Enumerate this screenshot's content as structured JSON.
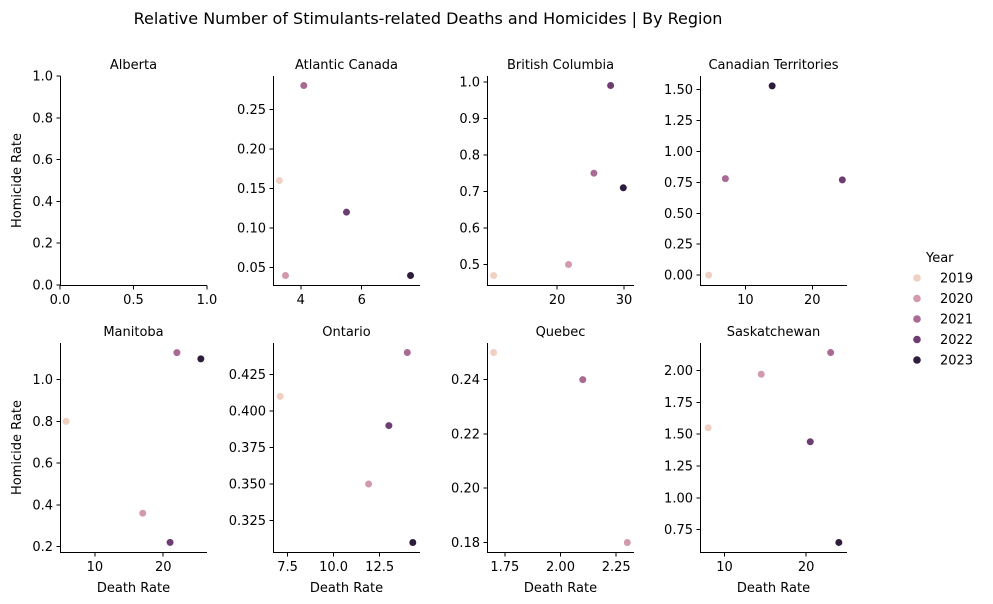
{
  "chart_data": {
    "type": "scatter",
    "title": "Relative Number of Stimulants-related Deaths and Homicides | By Region",
    "xlabel": "Death Rate",
    "ylabel": "Homicide Rate",
    "legend": {
      "title": "Year",
      "placement": "right",
      "entries": [
        {
          "label": "2019",
          "color": "#efd0c3"
        },
        {
          "label": "2020",
          "color": "#d29aac"
        },
        {
          "label": "2021",
          "color": "#a96a94"
        },
        {
          "label": "2022",
          "color": "#6d3d72"
        },
        {
          "label": "2023",
          "color": "#2d1c3c"
        }
      ]
    },
    "facets": [
      {
        "name": "Alberta",
        "xlim": [
          0,
          1
        ],
        "ylim": [
          0,
          1
        ],
        "xticks": [
          0,
          0.5,
          1
        ],
        "xtick_labels": [
          "0.0",
          "0.5",
          "1.0"
        ],
        "yticks": [
          0,
          0.2,
          0.4,
          0.6,
          0.8,
          1.0
        ],
        "ytick_labels": [
          "0.0",
          "0.2",
          "0.4",
          "0.6",
          "0.8",
          "1.0"
        ],
        "points": []
      },
      {
        "name": "Atlantic Canada",
        "xlim": [
          3.09,
          7.91
        ],
        "ylim": [
          0.028,
          0.292
        ],
        "xticks": [
          4,
          6
        ],
        "xtick_labels": [
          "4",
          "6"
        ],
        "yticks": [
          0.05,
          0.1,
          0.15,
          0.2,
          0.25
        ],
        "ytick_labels": [
          "0.05",
          "0.10",
          "0.15",
          "0.20",
          "0.25"
        ],
        "points": [
          {
            "year": "2019",
            "x": 3.3,
            "y": 0.16
          },
          {
            "year": "2020",
            "x": 3.5,
            "y": 0.04
          },
          {
            "year": "2021",
            "x": 4.1,
            "y": 0.28
          },
          {
            "year": "2022",
            "x": 5.5,
            "y": 0.12
          },
          {
            "year": "2023",
            "x": 7.6,
            "y": 0.04
          }
        ]
      },
      {
        "name": "British Columbia",
        "xlim": [
          9.5,
          31.5
        ],
        "ylim": [
          0.444,
          1.016
        ],
        "xticks": [
          20,
          30
        ],
        "xtick_labels": [
          "20",
          "30"
        ],
        "yticks": [
          0.5,
          0.6,
          0.7,
          0.8,
          0.9,
          1.0
        ],
        "ytick_labels": [
          "0.5",
          "0.6",
          "0.7",
          "0.8",
          "0.9",
          "1.0"
        ],
        "points": [
          {
            "year": "2019",
            "x": 10.5,
            "y": 0.47
          },
          {
            "year": "2020",
            "x": 21.7,
            "y": 0.5
          },
          {
            "year": "2021",
            "x": 25.5,
            "y": 0.75
          },
          {
            "year": "2022",
            "x": 28.0,
            "y": 0.99
          },
          {
            "year": "2023",
            "x": 29.9,
            "y": 0.71
          }
        ]
      },
      {
        "name": "Canadian Territories",
        "xlim": [
          3.2,
          25.2
        ],
        "ylim": [
          -0.08,
          1.61
        ],
        "xticks": [
          10,
          20
        ],
        "xtick_labels": [
          "10",
          "20"
        ],
        "yticks": [
          0,
          0.25,
          0.5,
          0.75,
          1.0,
          1.25,
          1.5
        ],
        "ytick_labels": [
          "0.00",
          "0.25",
          "0.50",
          "0.75",
          "1.00",
          "1.25",
          "1.50"
        ],
        "points": [
          {
            "year": "2019",
            "x": 4.5,
            "y": 0.0
          },
          {
            "year": "2021",
            "x": 7.0,
            "y": 0.78
          },
          {
            "year": "2023",
            "x": 14.0,
            "y": 1.53
          },
          {
            "year": "2022",
            "x": 24.5,
            "y": 0.77
          }
        ]
      },
      {
        "name": "Manitoba",
        "xlim": [
          4.9,
          26.4
        ],
        "ylim": [
          0.174,
          1.176
        ],
        "xticks": [
          10,
          20
        ],
        "xtick_labels": [
          "10",
          "20"
        ],
        "yticks": [
          0.2,
          0.4,
          0.6,
          0.8,
          1.0
        ],
        "ytick_labels": [
          "0.2",
          "0.4",
          "0.6",
          "0.8",
          "1.0"
        ],
        "points": [
          {
            "year": "2019",
            "x": 5.8,
            "y": 0.8
          },
          {
            "year": "2020",
            "x": 17.0,
            "y": 0.36
          },
          {
            "year": "2021",
            "x": 22.0,
            "y": 1.13
          },
          {
            "year": "2022",
            "x": 21.0,
            "y": 0.22
          },
          {
            "year": "2023",
            "x": 25.5,
            "y": 1.1
          }
        ]
      },
      {
        "name": "Ontario",
        "xlim": [
          6.71,
          14.69
        ],
        "ylim": [
          0.3035,
          0.4465
        ],
        "xticks": [
          7.5,
          10.0,
          12.5
        ],
        "xtick_labels": [
          "7.5",
          "10.0",
          "12.5"
        ],
        "yticks": [
          0.325,
          0.35,
          0.375,
          0.4,
          0.425
        ],
        "ytick_labels": [
          "0.325",
          "0.350",
          "0.375",
          "0.400",
          "0.425"
        ],
        "points": [
          {
            "year": "2019",
            "x": 7.1,
            "y": 0.41
          },
          {
            "year": "2020",
            "x": 11.9,
            "y": 0.35
          },
          {
            "year": "2021",
            "x": 14.0,
            "y": 0.44
          },
          {
            "year": "2022",
            "x": 13.0,
            "y": 0.39
          },
          {
            "year": "2023",
            "x": 14.3,
            "y": 0.31
          }
        ]
      },
      {
        "name": "Quebec",
        "xlim": [
          1.67,
          2.33
        ],
        "ylim": [
          0.1765,
          0.2535
        ],
        "xticks": [
          1.75,
          2.0,
          2.25
        ],
        "xtick_labels": [
          "1.75",
          "2.00",
          "2.25"
        ],
        "yticks": [
          0.18,
          0.2,
          0.22,
          0.24
        ],
        "ytick_labels": [
          "0.18",
          "0.20",
          "0.22",
          "0.24"
        ],
        "points": [
          {
            "year": "2019",
            "x": 1.7,
            "y": 0.25
          },
          {
            "year": "2021",
            "x": 2.1,
            "y": 0.24
          },
          {
            "year": "2020",
            "x": 2.3,
            "y": 0.18
          }
        ]
      },
      {
        "name": "Saskatchewan",
        "xlim": [
          7.0,
          25.0
        ],
        "ylim": [
          0.575,
          2.215
        ],
        "xticks": [
          10,
          20
        ],
        "xtick_labels": [
          "10",
          "20"
        ],
        "yticks": [
          0.75,
          1.0,
          1.25,
          1.5,
          1.75,
          2.0
        ],
        "ytick_labels": [
          "0.75",
          "1.00",
          "1.25",
          "1.50",
          "1.75",
          "2.00"
        ],
        "points": [
          {
            "year": "2019",
            "x": 8.0,
            "y": 1.55
          },
          {
            "year": "2020",
            "x": 14.5,
            "y": 1.97
          },
          {
            "year": "2021",
            "x": 23.0,
            "y": 2.14
          },
          {
            "year": "2022",
            "x": 20.5,
            "y": 1.44
          },
          {
            "year": "2023",
            "x": 24.0,
            "y": 0.65
          }
        ]
      }
    ]
  }
}
